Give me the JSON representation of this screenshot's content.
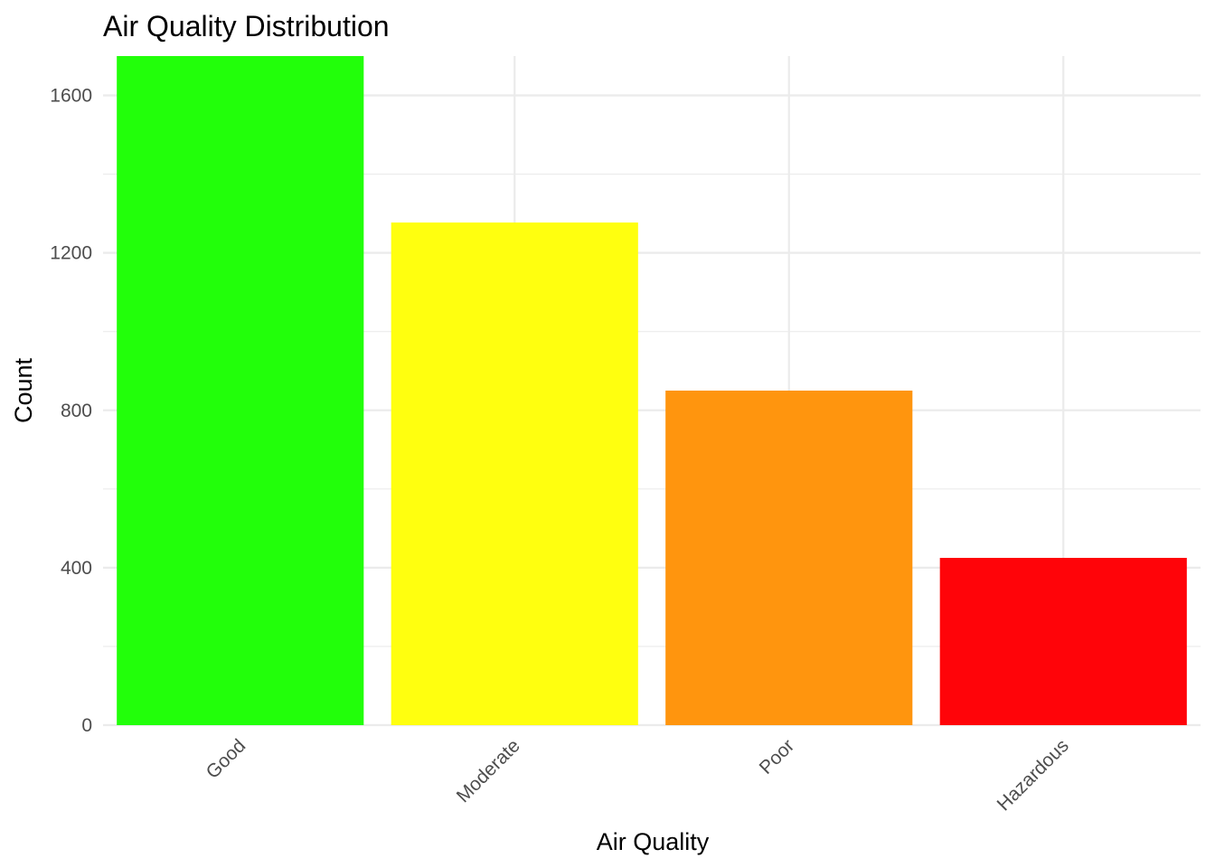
{
  "chart_data": {
    "type": "bar",
    "title": "Air Quality Distribution",
    "xlabel": "Air Quality",
    "ylabel": "Count",
    "categories": [
      "Good",
      "Moderate",
      "Poor",
      "Hazardous"
    ],
    "values": [
      1700,
      1277,
      850,
      425
    ],
    "colors": [
      "#22ff0a",
      "#ffff0f",
      "#ff950e",
      "#ff0409"
    ],
    "ylim": [
      0,
      1700
    ],
    "yticks": [
      0,
      400,
      800,
      1200,
      1600
    ],
    "ytick_labels": [
      "0",
      "400",
      "800",
      "1200",
      "1600"
    ],
    "grid": true,
    "legend": "none"
  }
}
